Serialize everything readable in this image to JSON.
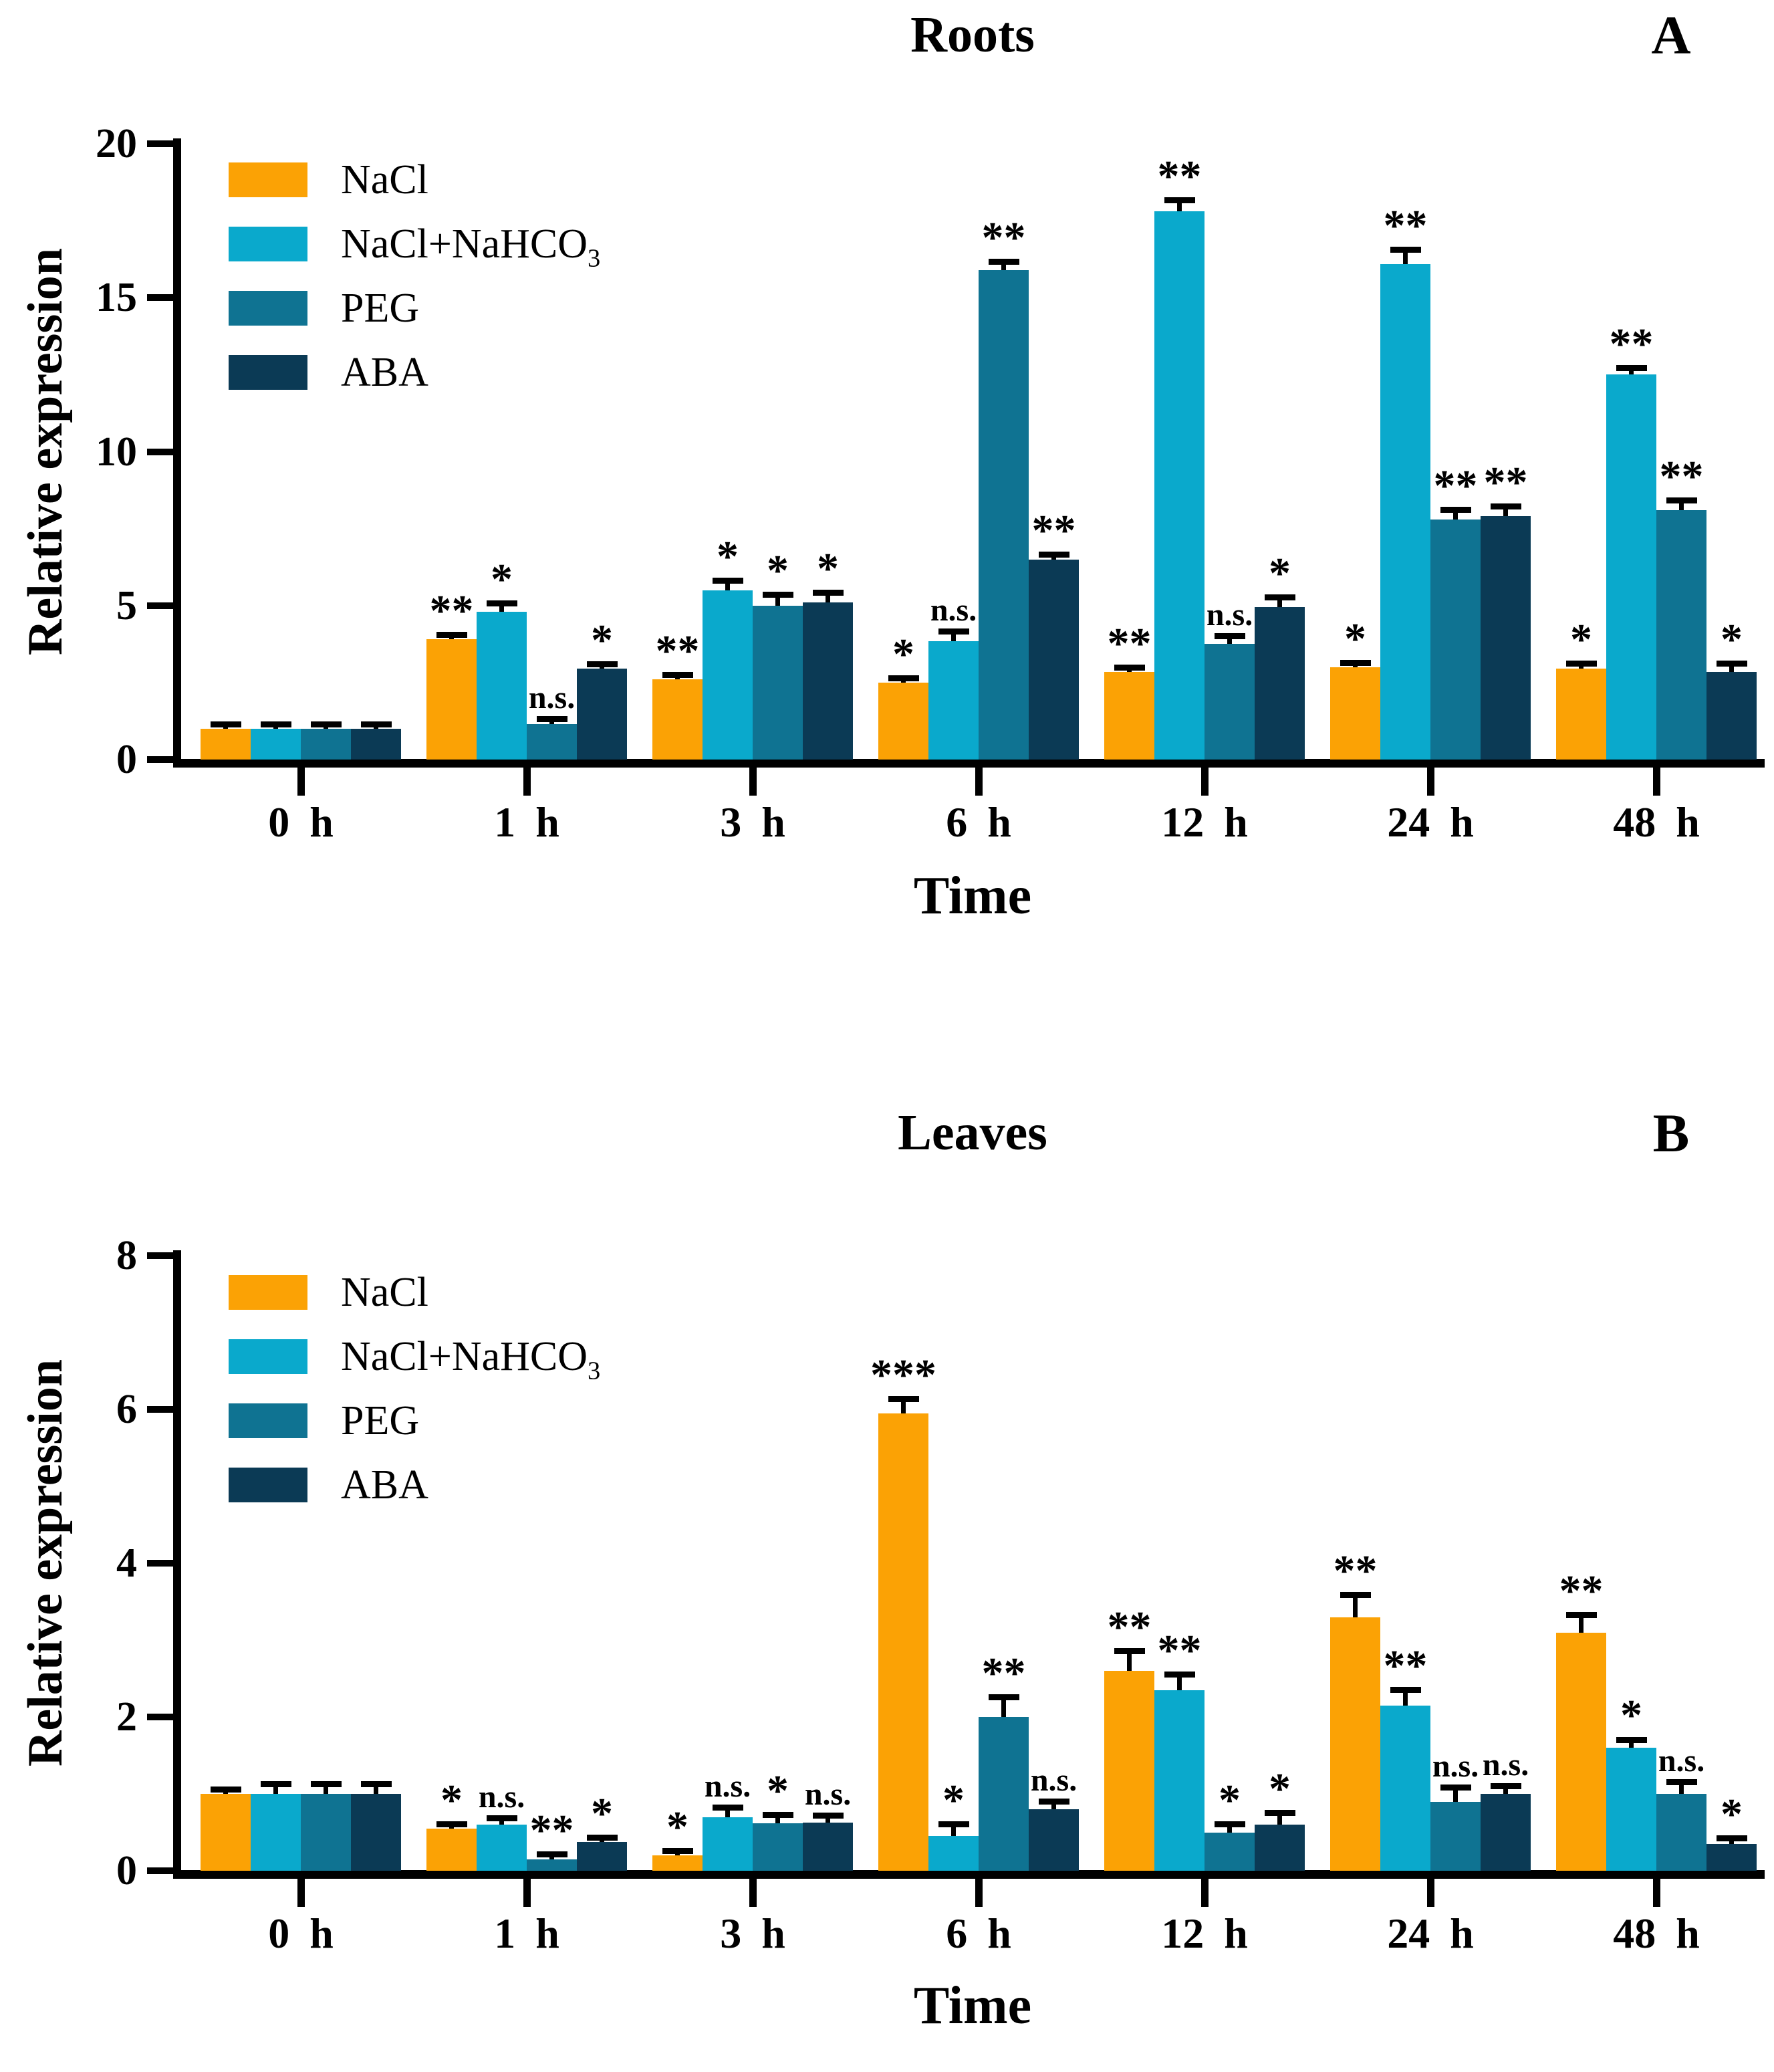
{
  "chart_data": [
    {
      "type": "bar",
      "title": "Roots",
      "panel_label": "A",
      "ylabel": "Relative expression",
      "xlabel": "Time",
      "ylim": [
        0,
        20
      ],
      "y_ticks": [
        0,
        5,
        10,
        15,
        20
      ],
      "grid": "off",
      "legend_position": "top-left-inside",
      "categories": [
        "0 h",
        "1 h",
        "3 h",
        "6 h",
        "12 h",
        "24 h",
        "48 h"
      ],
      "series": [
        {
          "name": "NaCl",
          "color": "#FBA205",
          "values": [
            1.0,
            3.9,
            2.6,
            2.5,
            2.85,
            3.0,
            2.95
          ],
          "errors": [
            0.06,
            0.1,
            0.1,
            0.12,
            0.1,
            0.12,
            0.15
          ],
          "significance": [
            null,
            "**",
            "**",
            "*",
            "**",
            "*",
            "*"
          ]
        },
        {
          "name": "NaCl+NaHCO3",
          "color": "#0AA9CC",
          "values": [
            1.0,
            4.8,
            5.5,
            3.85,
            17.8,
            16.1,
            12.5
          ],
          "errors": [
            0.07,
            0.25,
            0.3,
            0.3,
            0.35,
            0.45,
            0.2
          ],
          "significance": [
            null,
            "*",
            "*",
            "n.s.",
            "**",
            "**",
            "**"
          ]
        },
        {
          "name": "PEG",
          "color": "#0F7392",
          "values": [
            1.0,
            1.15,
            5.0,
            15.9,
            3.75,
            7.8,
            8.1
          ],
          "errors": [
            0.07,
            0.15,
            0.35,
            0.25,
            0.25,
            0.3,
            0.3
          ],
          "significance": [
            null,
            "n.s.",
            "*",
            "**",
            "n.s.",
            "**",
            "**"
          ]
        },
        {
          "name": "ABA",
          "color": "#0B3A55",
          "values": [
            1.0,
            2.95,
            5.1,
            6.5,
            4.95,
            7.9,
            2.85
          ],
          "errors": [
            0.07,
            0.1,
            0.3,
            0.15,
            0.3,
            0.3,
            0.25
          ],
          "significance": [
            null,
            "*",
            "*",
            "**",
            "*",
            "**",
            "*"
          ]
        }
      ]
    },
    {
      "type": "bar",
      "title": "Leaves",
      "panel_label": "B",
      "ylabel": "Relative expression",
      "xlabel": "Time",
      "ylim": [
        0,
        8
      ],
      "y_ticks": [
        0,
        2,
        4,
        6,
        8
      ],
      "grid": "off",
      "legend_position": "top-left-inside",
      "categories": [
        "0 h",
        "1 h",
        "3 h",
        "6 h",
        "12 h",
        "24 h",
        "48 h"
      ],
      "series": [
        {
          "name": "NaCl",
          "color": "#FBA205",
          "values": [
            1.0,
            0.55,
            0.2,
            5.95,
            2.6,
            3.3,
            3.1
          ],
          "errors": [
            0.03,
            0.04,
            0.04,
            0.18,
            0.25,
            0.28,
            0.22
          ],
          "significance": [
            null,
            "*",
            "*",
            "***",
            "**",
            "**",
            "**"
          ]
        },
        {
          "name": "NaCl+NaHCO3",
          "color": "#0AA9CC",
          "values": [
            1.0,
            0.6,
            0.7,
            0.45,
            2.35,
            2.15,
            1.6
          ],
          "errors": [
            0.12,
            0.08,
            0.12,
            0.15,
            0.2,
            0.2,
            0.1
          ],
          "significance": [
            null,
            "n.s.",
            "n.s.",
            "*",
            "**",
            "**",
            "*"
          ]
        },
        {
          "name": "PEG",
          "color": "#0F7392",
          "values": [
            1.0,
            0.15,
            0.62,
            2.0,
            0.5,
            0.9,
            1.0
          ],
          "errors": [
            0.12,
            0.06,
            0.1,
            0.25,
            0.1,
            0.18,
            0.15
          ],
          "significance": [
            null,
            "**",
            "*",
            "**",
            "*",
            "n.s.",
            "n.s."
          ]
        },
        {
          "name": "ABA",
          "color": "#0B3A55",
          "values": [
            1.0,
            0.37,
            0.63,
            0.8,
            0.6,
            1.0,
            0.35
          ],
          "errors": [
            0.12,
            0.05,
            0.08,
            0.1,
            0.15,
            0.1,
            0.07
          ],
          "significance": [
            null,
            "*",
            "n.s.",
            "n.s.",
            "*",
            "n.s.",
            "*"
          ]
        }
      ]
    }
  ],
  "legend": {
    "items": [
      {
        "label_main": "NaCl",
        "label_sub": ""
      },
      {
        "label_main": "NaCl+NaHCO",
        "label_sub": "3"
      },
      {
        "label_main": "PEG",
        "label_sub": ""
      },
      {
        "label_main": "ABA",
        "label_sub": ""
      }
    ]
  }
}
